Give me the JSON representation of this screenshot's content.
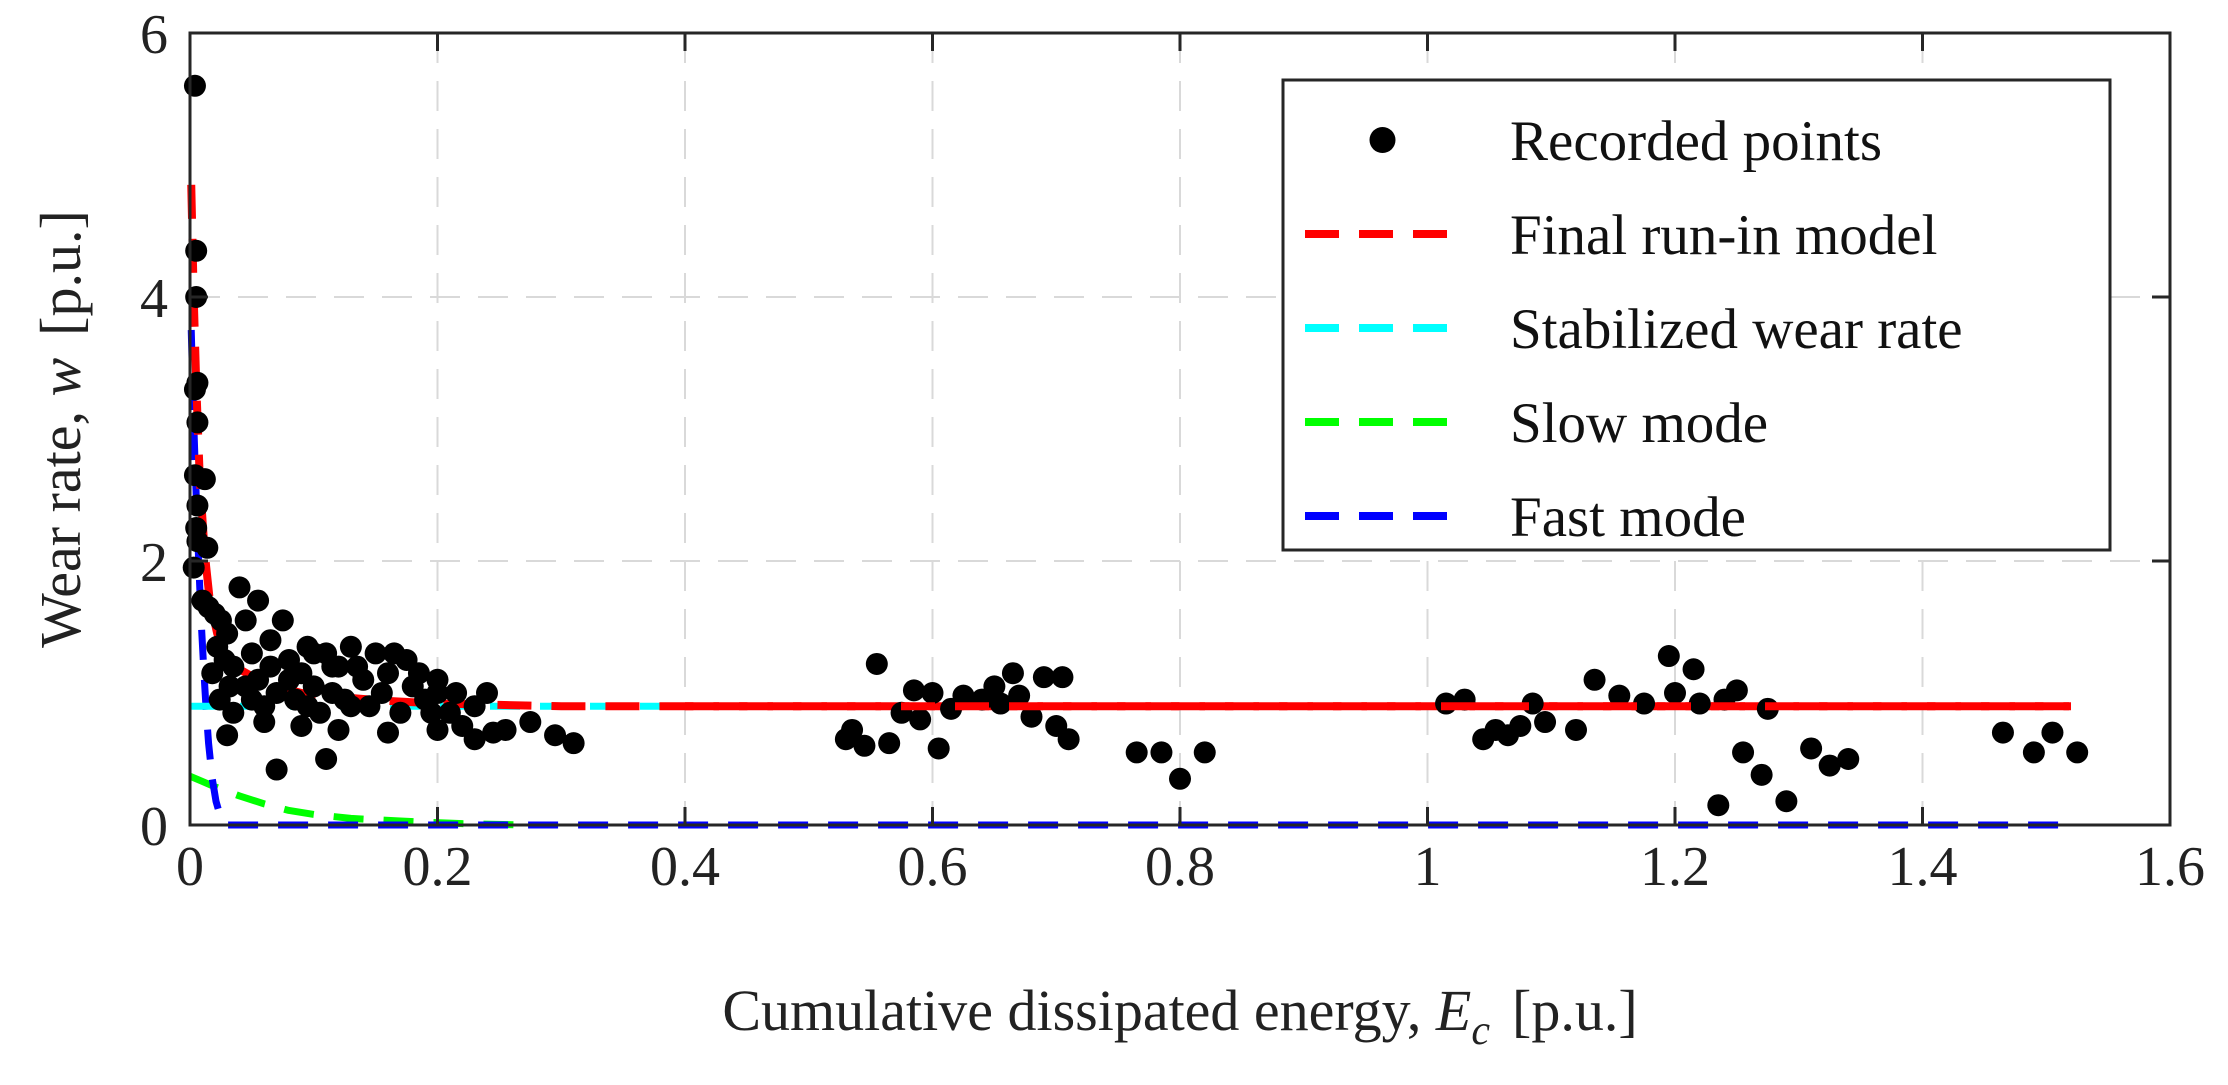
{
  "chart_data": {
    "type": "scatter",
    "xlabel": {
      "text": "Cumulative dissipated energy, ",
      "symbol": "E",
      "subscript": "c",
      "unit": "[p.u.]"
    },
    "ylabel": {
      "text": "Wear rate, ",
      "symbol": "w",
      "unit": "[p.u.]"
    },
    "xlim": [
      0,
      1.6
    ],
    "ylim": [
      0,
      6
    ],
    "xticks": [
      0,
      0.2,
      0.4,
      0.6,
      0.8,
      1,
      1.2,
      1.4,
      1.6
    ],
    "xtick_labels": [
      "0",
      "0.2",
      "0.4",
      "0.6",
      "0.8",
      "1",
      "1.2",
      "1.4",
      "1.6"
    ],
    "yticks": [
      0,
      2,
      4,
      6
    ],
    "ytick_labels": [
      "0",
      "2",
      "4",
      "6"
    ],
    "grid": true,
    "legend_position": "top-right",
    "legend": [
      {
        "label": "Recorded points",
        "marker": "dot",
        "color": "#000000"
      },
      {
        "label": "Final run-in model",
        "marker": "dash",
        "color": "#ff0000"
      },
      {
        "label": "Stabilized wear rate",
        "marker": "dash",
        "color": "#00ffff"
      },
      {
        "label": "Slow mode",
        "marker": "dash",
        "color": "#00ff00"
      },
      {
        "label": "Fast mode",
        "marker": "dash",
        "color": "#0000ff"
      }
    ],
    "series": [
      {
        "name": "Recorded points",
        "kind": "scatter",
        "color": "#000000",
        "points": [
          [
            0.004,
            5.6
          ],
          [
            0.005,
            4.35
          ],
          [
            0.005,
            4.0
          ],
          [
            0.006,
            3.35
          ],
          [
            0.004,
            3.3
          ],
          [
            0.006,
            3.05
          ],
          [
            0.004,
            2.65
          ],
          [
            0.012,
            2.62
          ],
          [
            0.006,
            2.42
          ],
          [
            0.005,
            2.25
          ],
          [
            0.006,
            2.15
          ],
          [
            0.014,
            2.1
          ],
          [
            0.003,
            1.95
          ],
          [
            0.01,
            1.7
          ],
          [
            0.015,
            1.65
          ],
          [
            0.02,
            1.6
          ],
          [
            0.025,
            1.55
          ],
          [
            0.03,
            1.45
          ],
          [
            0.022,
            1.35
          ],
          [
            0.028,
            1.25
          ],
          [
            0.018,
            1.15
          ],
          [
            0.032,
            1.05
          ],
          [
            0.024,
            0.95
          ],
          [
            0.035,
            0.85
          ],
          [
            0.04,
            1.8
          ],
          [
            0.045,
            1.55
          ],
          [
            0.05,
            1.3
          ],
          [
            0.055,
            1.1
          ],
          [
            0.06,
            0.9
          ],
          [
            0.055,
            1.7
          ],
          [
            0.065,
            1.2
          ],
          [
            0.07,
            1.0
          ],
          [
            0.075,
            1.55
          ],
          [
            0.08,
            1.25
          ],
          [
            0.085,
            0.95
          ],
          [
            0.09,
            1.15
          ],
          [
            0.095,
            1.35
          ],
          [
            0.1,
            1.05
          ],
          [
            0.105,
            0.85
          ],
          [
            0.11,
            1.3
          ],
          [
            0.115,
            1.0
          ],
          [
            0.12,
            1.2
          ],
          [
            0.125,
            0.95
          ],
          [
            0.13,
            1.35
          ],
          [
            0.14,
            1.1
          ],
          [
            0.145,
            0.9
          ],
          [
            0.15,
            1.3
          ],
          [
            0.155,
            1.0
          ],
          [
            0.16,
            1.15
          ],
          [
            0.17,
            0.85
          ],
          [
            0.175,
            1.25
          ],
          [
            0.18,
            1.05
          ],
          [
            0.19,
            0.95
          ],
          [
            0.2,
            1.1
          ],
          [
            0.21,
            0.85
          ],
          [
            0.215,
            1.0
          ],
          [
            0.22,
            0.75
          ],
          [
            0.23,
            0.9
          ],
          [
            0.24,
            1.0
          ],
          [
            0.245,
            0.7
          ],
          [
            0.255,
            0.72
          ],
          [
            0.275,
            0.78
          ],
          [
            0.295,
            0.68
          ],
          [
            0.31,
            0.62
          ],
          [
            0.07,
            0.42
          ],
          [
            0.11,
            0.5
          ],
          [
            0.03,
            0.68
          ],
          [
            0.06,
            0.78
          ],
          [
            0.09,
            0.75
          ],
          [
            0.12,
            0.72
          ],
          [
            0.16,
            0.7
          ],
          [
            0.2,
            0.72
          ],
          [
            0.23,
            0.65
          ],
          [
            0.035,
            1.2
          ],
          [
            0.045,
            1.05
          ],
          [
            0.05,
            0.95
          ],
          [
            0.065,
            1.4
          ],
          [
            0.08,
            1.1
          ],
          [
            0.095,
            0.9
          ],
          [
            0.1,
            1.3
          ],
          [
            0.115,
            1.2
          ],
          [
            0.13,
            0.9
          ],
          [
            0.135,
            1.2
          ],
          [
            0.165,
            1.3
          ],
          [
            0.185,
            1.15
          ],
          [
            0.2,
            1.0
          ],
          [
            0.195,
            0.85
          ],
          [
            0.53,
            0.65
          ],
          [
            0.535,
            0.72
          ],
          [
            0.545,
            0.6
          ],
          [
            0.555,
            1.22
          ],
          [
            0.565,
            0.62
          ],
          [
            0.575,
            0.85
          ],
          [
            0.585,
            1.02
          ],
          [
            0.59,
            0.8
          ],
          [
            0.6,
            1.0
          ],
          [
            0.605,
            0.58
          ],
          [
            0.615,
            0.88
          ],
          [
            0.625,
            0.98
          ],
          [
            0.64,
            0.95
          ],
          [
            0.65,
            1.05
          ],
          [
            0.655,
            0.92
          ],
          [
            0.665,
            1.15
          ],
          [
            0.67,
            0.98
          ],
          [
            0.68,
            0.82
          ],
          [
            0.69,
            1.12
          ],
          [
            0.7,
            0.75
          ],
          [
            0.705,
            1.12
          ],
          [
            0.71,
            0.65
          ],
          [
            0.765,
            0.55
          ],
          [
            0.785,
            0.55
          ],
          [
            0.8,
            0.35
          ],
          [
            0.82,
            0.55
          ],
          [
            1.015,
            0.92
          ],
          [
            1.03,
            0.95
          ],
          [
            1.045,
            0.65
          ],
          [
            1.055,
            0.72
          ],
          [
            1.065,
            0.68
          ],
          [
            1.075,
            0.75
          ],
          [
            1.085,
            0.92
          ],
          [
            1.095,
            0.78
          ],
          [
            1.12,
            0.72
          ],
          [
            1.135,
            1.1
          ],
          [
            1.155,
            0.98
          ],
          [
            1.175,
            0.92
          ],
          [
            1.195,
            1.28
          ],
          [
            1.2,
            1.0
          ],
          [
            1.215,
            1.18
          ],
          [
            1.22,
            0.92
          ],
          [
            1.235,
            0.15
          ],
          [
            1.24,
            0.95
          ],
          [
            1.25,
            1.02
          ],
          [
            1.255,
            0.55
          ],
          [
            1.27,
            0.38
          ],
          [
            1.275,
            0.88
          ],
          [
            1.29,
            0.18
          ],
          [
            1.31,
            0.58
          ],
          [
            1.325,
            0.45
          ],
          [
            1.34,
            0.5
          ],
          [
            1.465,
            0.7
          ],
          [
            1.49,
            0.55
          ],
          [
            1.505,
            0.7
          ],
          [
            1.525,
            0.55
          ]
        ]
      },
      {
        "name": "Final run-in model",
        "kind": "line",
        "color": "#ff0000",
        "points": [
          [
            0.001,
            4.85
          ],
          [
            0.003,
            4.0
          ],
          [
            0.005,
            3.35
          ],
          [
            0.008,
            2.6
          ],
          [
            0.012,
            2.05
          ],
          [
            0.016,
            1.7
          ],
          [
            0.022,
            1.45
          ],
          [
            0.03,
            1.28
          ],
          [
            0.04,
            1.18
          ],
          [
            0.055,
            1.1
          ],
          [
            0.07,
            1.05
          ],
          [
            0.09,
            1.0
          ],
          [
            0.12,
            0.97
          ],
          [
            0.16,
            0.94
          ],
          [
            0.2,
            0.92
          ],
          [
            0.25,
            0.91
          ],
          [
            0.3,
            0.9
          ],
          [
            0.4,
            0.9
          ],
          [
            1.52,
            0.9
          ]
        ]
      },
      {
        "name": "Stabilized wear rate",
        "kind": "line",
        "color": "#00ffff",
        "points": [
          [
            0.0,
            0.9
          ],
          [
            1.52,
            0.9
          ]
        ]
      },
      {
        "name": "Slow mode",
        "kind": "line",
        "color": "#00ff00",
        "points": [
          [
            0.0,
            0.37
          ],
          [
            0.01,
            0.33
          ],
          [
            0.02,
            0.29
          ],
          [
            0.04,
            0.22
          ],
          [
            0.06,
            0.16
          ],
          [
            0.08,
            0.11
          ],
          [
            0.1,
            0.08
          ],
          [
            0.13,
            0.05
          ],
          [
            0.17,
            0.03
          ],
          [
            0.22,
            0.01
          ],
          [
            0.27,
            0.0
          ]
        ]
      },
      {
        "name": "Fast mode",
        "kind": "line",
        "color": "#0000ff",
        "points": [
          [
            0.001,
            3.75
          ],
          [
            0.003,
            3.05
          ],
          [
            0.005,
            2.5
          ],
          [
            0.007,
            2.0
          ],
          [
            0.009,
            1.55
          ],
          [
            0.011,
            1.2
          ],
          [
            0.013,
            0.88
          ],
          [
            0.015,
            0.62
          ],
          [
            0.018,
            0.35
          ],
          [
            0.021,
            0.18
          ],
          [
            0.025,
            0.05
          ],
          [
            0.03,
            0.0
          ],
          [
            1.52,
            0.0
          ]
        ]
      }
    ]
  }
}
